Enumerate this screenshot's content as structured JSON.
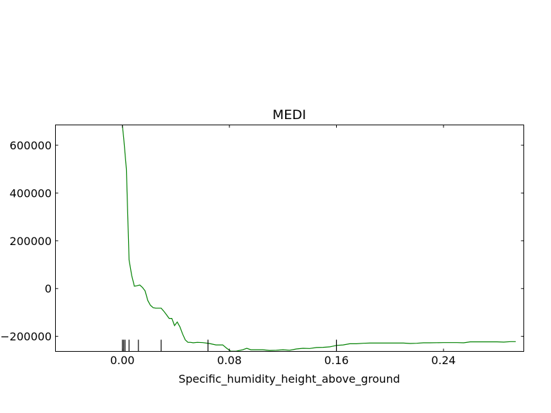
{
  "chart_data": {
    "type": "line",
    "title": "MEDI",
    "xlabel": "Specific_humidity_height_above_ground",
    "ylabel": "",
    "xlim": [
      -0.05,
      0.3
    ],
    "ylim": [
      -263000,
      685000
    ],
    "xticks": [
      0.0,
      0.08,
      0.16,
      0.24
    ],
    "xtick_labels": [
      "0.00",
      "0.08",
      "0.16",
      "0.24"
    ],
    "yticks": [
      -200000,
      0,
      200000,
      400000,
      600000
    ],
    "ytick_labels": [
      "−200000",
      "0",
      "200000",
      "400000",
      "600000"
    ],
    "grid": false,
    "series": [
      {
        "color": "#008000",
        "x": [
          0.0,
          0.001,
          0.003,
          0.005,
          0.007,
          0.009,
          0.011,
          0.013,
          0.015,
          0.017,
          0.019,
          0.021,
          0.023,
          0.025,
          0.027,
          0.029,
          0.031,
          0.033,
          0.035,
          0.037,
          0.039,
          0.041,
          0.043,
          0.045,
          0.047,
          0.049,
          0.051,
          0.053,
          0.056,
          0.06,
          0.065,
          0.07,
          0.075,
          0.078,
          0.081,
          0.085,
          0.09,
          0.093,
          0.096,
          0.1,
          0.105,
          0.11,
          0.115,
          0.12,
          0.125,
          0.13,
          0.135,
          0.14,
          0.145,
          0.15,
          0.155,
          0.16,
          0.165,
          0.17,
          0.175,
          0.18,
          0.185,
          0.19,
          0.2,
          0.21,
          0.215,
          0.22,
          0.225,
          0.23,
          0.24,
          0.25,
          0.255,
          0.26,
          0.27,
          0.28,
          0.285,
          0.29,
          0.294
        ],
        "values": [
          685000,
          630000,
          500000,
          120000,
          55000,
          10000,
          12000,
          15000,
          5000,
          -10000,
          -50000,
          -70000,
          -80000,
          -82000,
          -82000,
          -82000,
          -95000,
          -110000,
          -125000,
          -125000,
          -155000,
          -140000,
          -160000,
          -190000,
          -215000,
          -225000,
          -225000,
          -227000,
          -225000,
          -226000,
          -230000,
          -236000,
          -236000,
          -250000,
          -262000,
          -262000,
          -256000,
          -250000,
          -256000,
          -256000,
          -256000,
          -259000,
          -258000,
          -256000,
          -258000,
          -253000,
          -250000,
          -251000,
          -247000,
          -246000,
          -244000,
          -238000,
          -236000,
          -231000,
          -231000,
          -229000,
          -228000,
          -228000,
          -228000,
          -228000,
          -230000,
          -229000,
          -227000,
          -227000,
          -226000,
          -226000,
          -227000,
          -223000,
          -223000,
          -223000,
          -224000,
          -222000,
          -222000
        ]
      }
    ],
    "rug_x": [
      0.0,
      0.001,
      0.002,
      0.005,
      0.012,
      0.029,
      0.064,
      0.16
    ]
  }
}
